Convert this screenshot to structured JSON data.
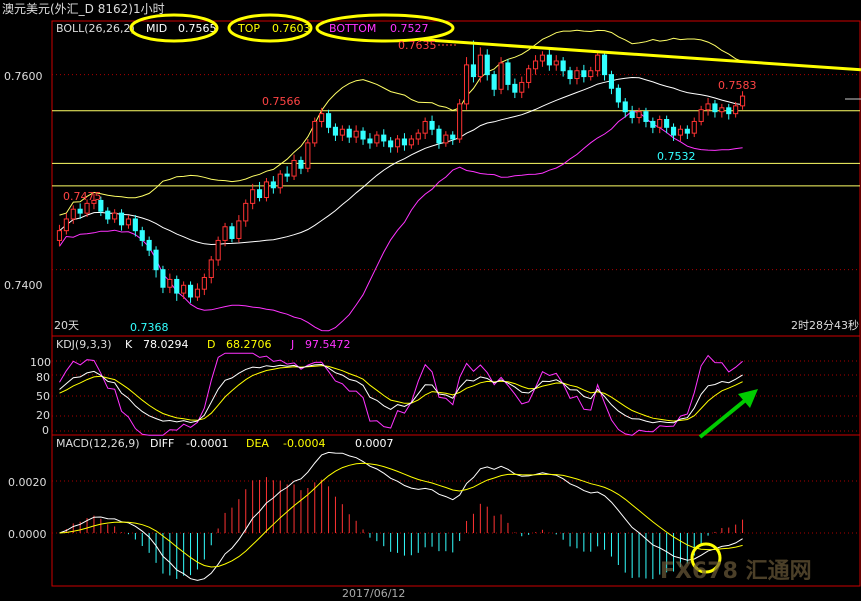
{
  "window_title": "澳元美元(外汇_D 8162)1小时",
  "boll": {
    "label": "BOLL(26,26,2)",
    "mid_label": "MID",
    "mid_value": "0.7565",
    "top_label": "TOP",
    "top_value": "0.7603",
    "bottom_label": "BOTTOM",
    "bottom_value": "0.7527"
  },
  "price_axis": {
    "labels": [
      "0.7600",
      "0.7400"
    ]
  },
  "price_annotations": {
    "a1": "0.7635",
    "a2": "0.7566",
    "a3": "0.7475",
    "a4": "0.7368",
    "a5": "0.7583",
    "a6": "0.7532"
  },
  "period_label": "20天",
  "countdown": "2时28分43秒",
  "kdj": {
    "label": "KDJ(9,3,3)",
    "k_label": "K",
    "k_value": "78.0294",
    "d_label": "D",
    "d_value": "68.2706",
    "j_label": "J",
    "j_value": "97.5472",
    "axis_labels": [
      "100",
      "80",
      "50",
      "20",
      "0"
    ]
  },
  "macd": {
    "label": "MACD(12,26,9)",
    "diff_label": "DIFF",
    "diff_value": "-0.0001",
    "dea_label": "DEA",
    "dea_value": "-0.0004",
    "macd_value": "0.0007",
    "axis_labels": [
      "0.0020",
      "0.0000"
    ]
  },
  "date_label": "2017/06/12",
  "watermark": "FX678 汇通网",
  "colors": {
    "up": "#ff3333",
    "down": "#33ffff",
    "mid_line": "#ffffff",
    "band_upper": "#ffff66",
    "band_lower": "#ff33ff",
    "k": "#ffffff",
    "d": "#ffff00",
    "j": "#ff33ff",
    "grid": "#aa0000",
    "annot_circle": "#ffff00",
    "trendline": "#ffff00",
    "arrow": "#00cc00"
  },
  "chart_data": {
    "type": "candlestick",
    "symbol": "AUD/USD 1H",
    "y_range": [
      0.7332,
      0.7655
    ],
    "horizontal_levels": [
      0.7563,
      0.7509,
      0.7486
    ],
    "trendline": [
      [
        0.7636,
        0
      ],
      [
        0.7605,
        1
      ]
    ],
    "candles": [
      [
        0.743,
        0.744,
        0.7424,
        0.7446
      ],
      [
        0.744,
        0.7452,
        0.7436,
        0.7458
      ],
      [
        0.7452,
        0.7462,
        0.7447,
        0.7466
      ],
      [
        0.7462,
        0.7458,
        0.7452,
        0.7468
      ],
      [
        0.7458,
        0.7468,
        0.7454,
        0.7472
      ],
      [
        0.7468,
        0.7471,
        0.7462,
        0.7478
      ],
      [
        0.7471,
        0.746,
        0.7455,
        0.7475
      ],
      [
        0.746,
        0.7452,
        0.7447,
        0.7464
      ],
      [
        0.7452,
        0.7458,
        0.7448,
        0.7462
      ],
      [
        0.7458,
        0.7446,
        0.744,
        0.7462
      ],
      [
        0.7446,
        0.7452,
        0.7442,
        0.7456
      ],
      [
        0.7452,
        0.744,
        0.7434,
        0.7456
      ],
      [
        0.744,
        0.743,
        0.7424,
        0.7444
      ],
      [
        0.743,
        0.742,
        0.7414,
        0.7434
      ],
      [
        0.742,
        0.74,
        0.7392,
        0.7424
      ],
      [
        0.74,
        0.7382,
        0.7376,
        0.7404
      ],
      [
        0.7382,
        0.739,
        0.7376,
        0.7396
      ],
      [
        0.739,
        0.7376,
        0.7368,
        0.7394
      ],
      [
        0.7376,
        0.7384,
        0.737,
        0.7388
      ],
      [
        0.7384,
        0.7372,
        0.7366,
        0.7388
      ],
      [
        0.7372,
        0.738,
        0.7368,
        0.7386
      ],
      [
        0.738,
        0.7392,
        0.7374,
        0.7396
      ],
      [
        0.7392,
        0.741,
        0.7386,
        0.7414
      ],
      [
        0.741,
        0.743,
        0.7404,
        0.7434
      ],
      [
        0.743,
        0.7444,
        0.7424,
        0.7448
      ],
      [
        0.7444,
        0.7432,
        0.7428,
        0.7448
      ],
      [
        0.7432,
        0.745,
        0.7428,
        0.7456
      ],
      [
        0.745,
        0.7468,
        0.7444,
        0.7472
      ],
      [
        0.7468,
        0.7482,
        0.7462,
        0.7488
      ],
      [
        0.7482,
        0.7474,
        0.747,
        0.749
      ],
      [
        0.7474,
        0.749,
        0.747,
        0.7494
      ],
      [
        0.749,
        0.7484,
        0.7478,
        0.7496
      ],
      [
        0.7484,
        0.7498,
        0.7478,
        0.7502
      ],
      [
        0.7498,
        0.7496,
        0.749,
        0.7506
      ],
      [
        0.7496,
        0.7512,
        0.7492,
        0.7518
      ],
      [
        0.7512,
        0.7504,
        0.7498,
        0.7516
      ],
      [
        0.7504,
        0.753,
        0.75,
        0.7534
      ],
      [
        0.753,
        0.7552,
        0.7526,
        0.7556
      ],
      [
        0.7552,
        0.756,
        0.7546,
        0.7566
      ],
      [
        0.756,
        0.7546,
        0.754,
        0.7564
      ],
      [
        0.7546,
        0.7538,
        0.7532,
        0.755
      ],
      [
        0.7538,
        0.7544,
        0.7532,
        0.7548
      ],
      [
        0.7544,
        0.7536,
        0.753,
        0.7548
      ],
      [
        0.7536,
        0.7542,
        0.753,
        0.7548
      ],
      [
        0.7542,
        0.7534,
        0.7528,
        0.7546
      ],
      [
        0.7534,
        0.753,
        0.7524,
        0.754
      ],
      [
        0.753,
        0.7538,
        0.7526,
        0.7542
      ],
      [
        0.7538,
        0.7532,
        0.7526,
        0.7544
      ],
      [
        0.7532,
        0.7526,
        0.752,
        0.7536
      ],
      [
        0.7526,
        0.7534,
        0.752,
        0.7538
      ],
      [
        0.7534,
        0.7528,
        0.7522,
        0.754
      ],
      [
        0.7528,
        0.7534,
        0.7524,
        0.7538
      ],
      [
        0.7534,
        0.754,
        0.7528,
        0.7544
      ],
      [
        0.754,
        0.7552,
        0.7534,
        0.7556
      ],
      [
        0.7552,
        0.7544,
        0.7538,
        0.7558
      ],
      [
        0.7544,
        0.753,
        0.7524,
        0.7548
      ],
      [
        0.753,
        0.7538,
        0.7526,
        0.7542
      ],
      [
        0.7538,
        0.7534,
        0.7528,
        0.7542
      ],
      [
        0.7534,
        0.757,
        0.753,
        0.7575
      ],
      [
        0.757,
        0.761,
        0.7564,
        0.7618
      ],
      [
        0.761,
        0.7598,
        0.7592,
        0.7635
      ],
      [
        0.7598,
        0.762,
        0.7592,
        0.7628
      ],
      [
        0.762,
        0.76,
        0.7594,
        0.7626
      ],
      [
        0.76,
        0.7585,
        0.7578,
        0.7604
      ],
      [
        0.7585,
        0.7612,
        0.758,
        0.7618
      ],
      [
        0.7612,
        0.759,
        0.7584,
        0.7616
      ],
      [
        0.759,
        0.7582,
        0.7576,
        0.7596
      ],
      [
        0.7582,
        0.7592,
        0.7576,
        0.7598
      ],
      [
        0.7592,
        0.7606,
        0.7586,
        0.761
      ],
      [
        0.7606,
        0.7614,
        0.76,
        0.762
      ],
      [
        0.7614,
        0.762,
        0.7608,
        0.7624
      ],
      [
        0.762,
        0.761,
        0.7604,
        0.7626
      ],
      [
        0.761,
        0.7614,
        0.7604,
        0.762
      ],
      [
        0.7614,
        0.7604,
        0.7598,
        0.7618
      ],
      [
        0.7604,
        0.7596,
        0.759,
        0.7608
      ],
      [
        0.7596,
        0.7604,
        0.759,
        0.7608
      ],
      [
        0.7604,
        0.7598,
        0.7592,
        0.761
      ],
      [
        0.7598,
        0.7604,
        0.7594,
        0.7608
      ],
      [
        0.7604,
        0.762,
        0.7598,
        0.7624
      ],
      [
        0.762,
        0.76,
        0.7594,
        0.7624
      ],
      [
        0.76,
        0.7586,
        0.758,
        0.7604
      ],
      [
        0.7586,
        0.7572,
        0.7566,
        0.759
      ],
      [
        0.7572,
        0.7562,
        0.7556,
        0.7576
      ],
      [
        0.7562,
        0.7556,
        0.755,
        0.7568
      ],
      [
        0.7556,
        0.7562,
        0.755,
        0.7566
      ],
      [
        0.7562,
        0.7552,
        0.7546,
        0.7566
      ],
      [
        0.7552,
        0.7546,
        0.754,
        0.7556
      ],
      [
        0.7546,
        0.7554,
        0.754,
        0.7558
      ],
      [
        0.7554,
        0.7546,
        0.754,
        0.7558
      ],
      [
        0.7546,
        0.7538,
        0.7532,
        0.755
      ],
      [
        0.7538,
        0.7544,
        0.7532,
        0.7548
      ],
      [
        0.7544,
        0.754,
        0.7534,
        0.7548
      ],
      [
        0.754,
        0.7552,
        0.7536,
        0.7556
      ],
      [
        0.7552,
        0.7564,
        0.7548,
        0.7568
      ],
      [
        0.7564,
        0.757,
        0.7558,
        0.7576
      ],
      [
        0.757,
        0.7562,
        0.7556,
        0.7574
      ],
      [
        0.7562,
        0.7566,
        0.7556,
        0.757
      ],
      [
        0.7566,
        0.756,
        0.7554,
        0.757
      ],
      [
        0.756,
        0.7568,
        0.7556,
        0.7572
      ],
      [
        0.7568,
        0.7578,
        0.7564,
        0.7583
      ]
    ]
  }
}
